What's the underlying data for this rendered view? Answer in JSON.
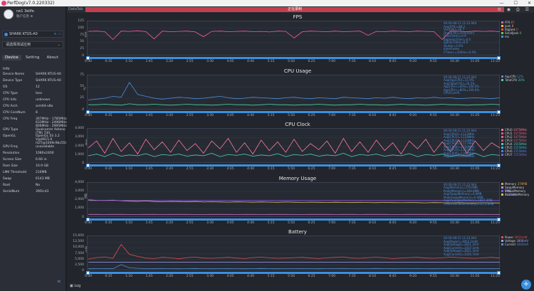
{
  "window": {
    "title": "PerfDog(v7.0.220332)",
    "controls": [
      "—",
      "☐",
      "✕"
    ]
  },
  "user": {
    "name": "ne1 3elife",
    "sub": "账户信息 ⊕"
  },
  "device": {
    "name": "SHARK KTUS-A0"
  },
  "app_select": {
    "placeholder": "请选择测试应用"
  },
  "tabs": [
    "Device",
    "Setting",
    "About"
  ],
  "info": {
    "header": "Info",
    "rows": [
      {
        "k": "Device Name",
        "v": "SHARK KTUS-A0"
      },
      {
        "k": "Device Type",
        "v": "SHARK KTUS-A0"
      },
      {
        "k": "OS",
        "v": "12"
      },
      {
        "k": "CPU Type",
        "v": "taro"
      },
      {
        "k": "CPU Info",
        "v": "unknown"
      },
      {
        "k": "CPU Arch",
        "v": "arm64-v8a"
      },
      {
        "k": "CPU CoreNum",
        "v": "8"
      },
      {
        "k": "CPU Freq",
        "v": "307MHz - 1785MHz\n633MHz - 2496MHz\n806MHz - 2995MHz"
      },
      {
        "k": "GPU Type",
        "v": "Qualcomm Adreno\n(TM) 730"
      },
      {
        "k": "OpenGL",
        "v": "OpenGL ES 3.2\nV@0615.0\n(GIT@1049c9bc55)"
      },
      {
        "k": "GPU Freq",
        "v": "unavailable"
      },
      {
        "k": "Resolution",
        "v": "1080x2400"
      },
      {
        "k": "Screen Size",
        "v": "6.66 in"
      },
      {
        "k": "Ram Size",
        "v": "10.9 GB"
      },
      {
        "k": "LMK Threshold",
        "v": "216MB"
      },
      {
        "k": "Swap",
        "v": "6143 MB"
      },
      {
        "k": "Root",
        "v": "No"
      },
      {
        "k": "SerialNum",
        "v": "39f2cd3"
      }
    ]
  },
  "topbar": {
    "status": "DataTab",
    "recording": "正在录制"
  },
  "x_ticks": [
    "0:00",
    "0:35",
    "1:10",
    "1:45",
    "2:20",
    "2:55",
    "3:30",
    "4:05",
    "4:40",
    "5:15",
    "5:50",
    "6:25",
    "7:00",
    "7:35",
    "8:10",
    "8:45",
    "9:20",
    "9:55",
    "10:30",
    "11:05",
    "11:23"
  ],
  "panels": [
    {
      "title": "FPS",
      "unit": "FPS",
      "yticks": [
        "125",
        "100",
        "75",
        "50",
        "25",
        "0"
      ],
      "stats": "00:00-08:15 11:23.944\nAvg(FPS)=88.2\nVar(FPS)=28.7\nDrop(FPS)=0.0[/10m]\nJank(/10m)=0.0\nBigJank(/10m)=0.0\nSJank(/10m)=0.0\nStutter=0.0%\nInterFrame\nFTime>=100ms=0.0%",
      "legend": [
        {
          "name": "FPS",
          "color": "#ff5aa0",
          "val": "87"
        },
        {
          "name": "Jank",
          "color": "#f0c040",
          "val": "0"
        },
        {
          "name": "BigJank",
          "color": "#ff5050",
          "val": "0"
        },
        {
          "name": "SmallJank",
          "color": "#60d060",
          "val": "0"
        },
        {
          "name": "ms",
          "color": "#4e8fd8",
          "val": ""
        }
      ],
      "chart_data": {
        "type": "line",
        "ylim": [
          0,
          125
        ],
        "series": [
          {
            "name": "FPS",
            "color": "#ff5aa0",
            "values": [
              89,
              90,
              88,
              60,
              90,
              89,
              91,
              88,
              62,
              90,
              88,
              89,
              90,
              87,
              70,
              89,
              90,
              88,
              89,
              90,
              88,
              89,
              87,
              90,
              89,
              65,
              88,
              90,
              89,
              88,
              90,
              88,
              89,
              90,
              75,
              89,
              88,
              90,
              89,
              88,
              90,
              89,
              88,
              60,
              90,
              89,
              88,
              90,
              89,
              90,
              88
            ]
          }
        ]
      }
    },
    {
      "title": "CPU Usage",
      "unit": "%",
      "yticks": [
        "75",
        "50",
        "25",
        "0"
      ],
      "stats": "00:00-08:15 11:23.944\nAvg(AppCPU)=11.9%\nAvg(TotalCPU)=20.5%\nAppCPU<=60%=100.0%\nAppCPU<=80%=100.0%\nCPU/Core%",
      "legend": [
        {
          "name": "AppCPU",
          "color": "#4e8fd8",
          "val": "12%"
        },
        {
          "name": "TotalCPU",
          "color": "#4fd0a0",
          "val": "20%"
        }
      ],
      "chart_data": {
        "type": "line",
        "ylim": [
          0,
          75
        ],
        "series": [
          {
            "name": "AppCPU",
            "color": "#4e8fd8",
            "values": [
              22,
              24,
              26,
              30,
              28,
              60,
              34,
              30,
              26,
              24,
              26,
              28,
              27,
              25,
              26,
              28,
              30,
              27,
              25,
              26,
              28,
              27,
              26,
              25,
              27,
              28,
              26,
              25,
              27,
              26,
              25,
              28,
              27,
              26,
              25,
              27,
              26,
              28,
              26,
              25,
              27,
              26,
              28,
              26,
              27,
              25,
              26,
              27,
              26,
              25,
              27
            ]
          },
          {
            "name": "TotalCPU",
            "color": "#4fd0a0",
            "values": [
              12,
              12,
              13,
              12,
              11,
              14,
              12,
              12,
              13,
              12,
              11,
              12,
              13,
              12,
              12,
              11,
              12,
              13,
              12,
              12,
              11,
              12,
              13,
              12,
              12,
              11,
              12,
              12,
              13,
              12,
              11,
              12,
              12,
              13,
              12,
              12,
              11,
              12,
              13,
              12,
              12,
              11,
              12,
              13,
              12,
              12,
              11,
              12,
              12,
              13,
              12
            ]
          }
        ]
      }
    },
    {
      "title": "CPU Clock",
      "unit": "MHz",
      "yticks": [
        "4,000",
        "3,000",
        "2,000",
        "1,000",
        "0"
      ],
      "stats": "00:00-08:15 11:23.944\nAvg(CPU0)=1122MHz\nAvg(CPU1)=1118MHz\nAvg(CPU2)=1120MHz\nAvg(CPU3)=1117MHz\nAvg(CPU4)=1350MHz\nAvg(CPU5)=1351MHz\nAvg(CPU6)=1352MHz\nAvg(CPU7)=1350MHz",
      "legend": [
        {
          "name": "CPU0",
          "color": "#ff7aa0",
          "val": "1075MHz"
        },
        {
          "name": "CPU1",
          "color": "#e05a80",
          "val": "1075MHz"
        },
        {
          "name": "CPU2",
          "color": "#d07090",
          "val": "1075MHz"
        },
        {
          "name": "CPU3",
          "color": "#c06080",
          "val": "1075MHz"
        },
        {
          "name": "CPU4",
          "color": "#4fd0c0",
          "val": "1555MHz"
        },
        {
          "name": "CPU5",
          "color": "#40b0e0",
          "val": "1555MHz"
        },
        {
          "name": "CPU6",
          "color": "#3a8fe0",
          "val": "1555MHz"
        },
        {
          "name": "CPU7",
          "color": "#8060e0",
          "val": "1555MHz"
        }
      ],
      "chart_data": {
        "type": "line",
        "ylim": [
          0,
          4000
        ],
        "series": [
          {
            "name": "CPU0",
            "color": "#ff7aa0",
            "values": [
              1800,
              2600,
              1200,
              2900,
              1400,
              2400,
              1100,
              2800,
              1600,
              2500,
              1300,
              2700,
              1500,
              2300,
              1200,
              2600,
              1700,
              2900,
              1300,
              2400,
              1100,
              2700,
              1500,
              2500,
              1300,
              2800,
              1400,
              2300,
              1600,
              2600,
              1200,
              2900,
              1400,
              2500,
              1300,
              2700,
              1500,
              2400,
              1100,
              2600,
              1700,
              2800,
              1300,
              2500,
              1400,
              2700,
              1200,
              2600,
              1500,
              2400,
              1800
            ]
          },
          {
            "name": "CPU4",
            "color": "#4fd0c0",
            "values": [
              900,
              1100,
              800,
              1200,
              850,
              1000,
              900,
              1150,
              800,
              1050,
              950,
              1100,
              850,
              1000,
              900,
              1200,
              800,
              1050,
              950,
              1100,
              850,
              1000,
              900,
              1150,
              800,
              1050,
              950,
              1100,
              850,
              1000,
              900,
              1200,
              800,
              1050,
              950,
              1100,
              850,
              1000,
              900,
              1150,
              800,
              1050,
              950,
              1100,
              850,
              1000,
              900,
              1200,
              800,
              1050,
              950
            ]
          }
        ]
      }
    },
    {
      "title": "Memory Usage",
      "unit": "MB",
      "yticks": [
        "4,000",
        "3,000",
        "2,000",
        "1,000",
        "0"
      ],
      "stats": "00:00-08:15 11:23.944\nAvg(Memory)=379.0MB\nPeak(Memory)=406.8MB\nAvg(SwapMemory)=0.0MB\nPeak(SwapMemory)=0.0MB\nAvg(AvailableMemory)=1807.2MB\nPeak(AvailableMemory)=2078.8MB",
      "legend": [
        {
          "name": "Memory",
          "color": "#e0a040",
          "val": "379MB"
        },
        {
          "name": "SwapMemory",
          "color": "#a0a0ff",
          "val": "0MB"
        },
        {
          "name": "VirtualMemory",
          "color": "#9050e0",
          "val": "1974MB"
        },
        {
          "name": "AvailableMemory",
          "color": "#d0c060",
          "val": ""
        }
      ],
      "chart_data": {
        "type": "line",
        "ylim": [
          0,
          4000
        ],
        "series": [
          {
            "name": "Memory",
            "color": "#c86acb",
            "values": [
              380,
              382,
              379,
              381,
              380,
              379,
              378,
              380,
              381,
              379,
              380,
              382,
              381,
              379,
              378,
              380,
              381,
              382,
              379,
              380,
              381,
              379,
              380,
              382,
              381,
              379,
              378,
              380,
              381,
              382,
              379,
              380,
              381,
              379,
              380,
              382,
              381,
              379,
              378,
              380,
              381,
              382,
              379,
              380,
              381,
              379,
              380,
              382,
              381,
              379,
              380
            ]
          },
          {
            "name": "AvailableMemory",
            "color": "#d0c060",
            "values": [
              2050,
              2000,
              1980,
              2020,
              1950,
              1900,
              1880,
              1920,
              1860,
              1840,
              1870,
              1850,
              1820,
              1860,
              1800,
              1830,
              1810,
              1790,
              1820,
              1800,
              1780,
              1810,
              1790,
              1770,
              1800,
              1780,
              1760,
              1790,
              1770,
              1750,
              1780,
              1760,
              1740,
              1770,
              1750,
              1730,
              1760,
              1740,
              1720,
              1750,
              1730,
              1710,
              1740,
              1720,
              1700,
              1730,
              1710,
              1690,
              1720,
              1700,
              1690
            ]
          },
          {
            "name": "VirtualMemory",
            "color": "#9050e0",
            "values": [
              1974,
              1974,
              1974,
              1974,
              1974,
              1974,
              1974,
              1974,
              1974,
              1974,
              1974,
              1974,
              1974,
              1974,
              1974,
              1974,
              1974,
              1974,
              1974,
              1974,
              1974,
              1974,
              1974,
              1974,
              1974,
              1974,
              1974,
              1974,
              1974,
              1974,
              1974,
              1974,
              1974,
              1974,
              1974,
              1974,
              1974,
              1974,
              1974,
              1974,
              1974,
              1974,
              1974,
              1974,
              1974,
              1974,
              1974,
              1974,
              1974,
              1974,
              1974
            ]
          }
        ]
      }
    },
    {
      "title": "Battery",
      "unit": "mW",
      "yticks": [
        "15,000",
        "12,500",
        "10,000",
        "7,500",
        "5,000",
        "2,500",
        "0"
      ],
      "stats": "00:00-08:15 11:23.944\nAvg(Power)=3952.2mW\nAvg(Voltage)=3821.3mV\nAvg(Current)=1037.1mA\nAvg(Voltage)=3821.3mV\nAvg(Current)=1035.7mA",
      "legend": [
        {
          "name": "Power",
          "color": "#e05050",
          "val": "3952mW"
        },
        {
          "name": "Voltage",
          "color": "#a0a0ff",
          "val": "3806mV"
        },
        {
          "name": "Current",
          "color": "#4e8fd8",
          "val": "1020mA"
        }
      ],
      "chart_data": {
        "type": "line",
        "ylim": [
          0,
          15000
        ],
        "series": [
          {
            "name": "Power",
            "color": "#e05050",
            "values": [
              5200,
              5800,
              6100,
              5500,
              11500,
              7200,
              6300,
              5600,
              5400,
              5900,
              5700,
              5300,
              5800,
              6000,
              5600,
              5500,
              5700,
              5900,
              5600,
              5400,
              5800,
              6000,
              5700,
              5500,
              5600,
              5800,
              5900,
              5600,
              5400,
              5700,
              5900,
              6100,
              5600,
              5500,
              5800,
              6000,
              5700,
              5400,
              5600,
              5800,
              5900,
              5600,
              5500,
              5700,
              6000,
              5800,
              5600,
              5500,
              5700,
              5900,
              5600
            ]
          },
          {
            "name": "Voltage",
            "color": "#a0a0ff",
            "values": [
              3800,
              3800,
              3800,
              3800,
              3800,
              3800,
              3800,
              3800,
              3800,
              3800,
              3800,
              3800,
              3800,
              3800,
              3800,
              3800,
              3800,
              3800,
              3800,
              3800,
              3800,
              3800,
              3800,
              3800,
              3800,
              3800,
              3800,
              3800,
              3800,
              3800,
              3800,
              3800,
              3800,
              3800,
              3800,
              3800,
              3800,
              3800,
              3800,
              3800,
              3800,
              3800,
              3800,
              3800,
              3800,
              3800,
              3800,
              3800,
              3800,
              3800,
              3800
            ]
          },
          {
            "name": "Current",
            "color": "#4e8fd8",
            "values": [
              1000,
              1050,
              1100,
              1000,
              2800,
              1400,
              1200,
              1050,
              1000,
              1100,
              1050,
              1000,
              1080,
              1120,
              1040,
              1020,
              1060,
              1100,
              1040,
              1000,
              1080,
              1120,
              1060,
              1020,
              1040,
              1080,
              1100,
              1040,
              1000,
              1060,
              1100,
              1140,
              1040,
              1020,
              1080,
              1120,
              1060,
              1000,
              1040,
              1080,
              1100,
              1040,
              1020,
              1060,
              1120,
              1080,
              1040,
              1020,
              1060,
              1100,
              1040
            ]
          }
        ]
      }
    }
  ],
  "bottom": {
    "log": "Log"
  }
}
